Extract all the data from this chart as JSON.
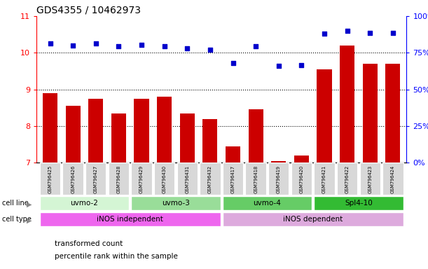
{
  "title": "GDS4355 / 10462973",
  "samples": [
    "GSM796425",
    "GSM796426",
    "GSM796427",
    "GSM796428",
    "GSM796429",
    "GSM796430",
    "GSM796431",
    "GSM796432",
    "GSM796417",
    "GSM796418",
    "GSM796419",
    "GSM796420",
    "GSM796421",
    "GSM796422",
    "GSM796423",
    "GSM796424"
  ],
  "bar_values": [
    8.9,
    8.55,
    8.75,
    8.35,
    8.75,
    8.8,
    8.35,
    8.2,
    7.45,
    8.45,
    7.05,
    7.2,
    9.55,
    10.2,
    9.7,
    9.7
  ],
  "scatter_values": [
    10.25,
    10.2,
    10.25,
    10.18,
    10.22,
    10.18,
    10.12,
    10.08,
    9.72,
    10.18,
    9.65,
    9.67,
    10.52,
    10.6,
    10.55,
    10.55
  ],
  "bar_color": "#cc0000",
  "scatter_color": "#0000cc",
  "ylim_left": [
    7,
    11
  ],
  "ylim_right": [
    0,
    100
  ],
  "yticks_left": [
    7,
    8,
    9,
    10,
    11
  ],
  "ytick_labels_left": [
    "7",
    "8",
    "9",
    "10",
    "11"
  ],
  "yticks_right": [
    0,
    25,
    50,
    75,
    100
  ],
  "ytick_labels_right": [
    "0%",
    "25%",
    "50%",
    "75%",
    "100%"
  ],
  "cell_line_groups": [
    {
      "label": "uvmo-2",
      "start": 0,
      "end": 3,
      "color": "#d4f5d4"
    },
    {
      "label": "uvmo-3",
      "start": 4,
      "end": 7,
      "color": "#99dd99"
    },
    {
      "label": "uvmo-4",
      "start": 8,
      "end": 11,
      "color": "#66cc66"
    },
    {
      "label": "Spl4-10",
      "start": 12,
      "end": 15,
      "color": "#33bb33"
    }
  ],
  "cell_type_groups": [
    {
      "label": "iNOS independent",
      "start": 0,
      "end": 7,
      "color": "#ee66ee"
    },
    {
      "label": "iNOS dependent",
      "start": 8,
      "end": 15,
      "color": "#ddaadd"
    }
  ],
  "legend_bar_label": "transformed count",
  "legend_scatter_label": "percentile rank within the sample",
  "cell_line_label": "cell line",
  "cell_type_label": "cell type",
  "bar_bottom": 7
}
